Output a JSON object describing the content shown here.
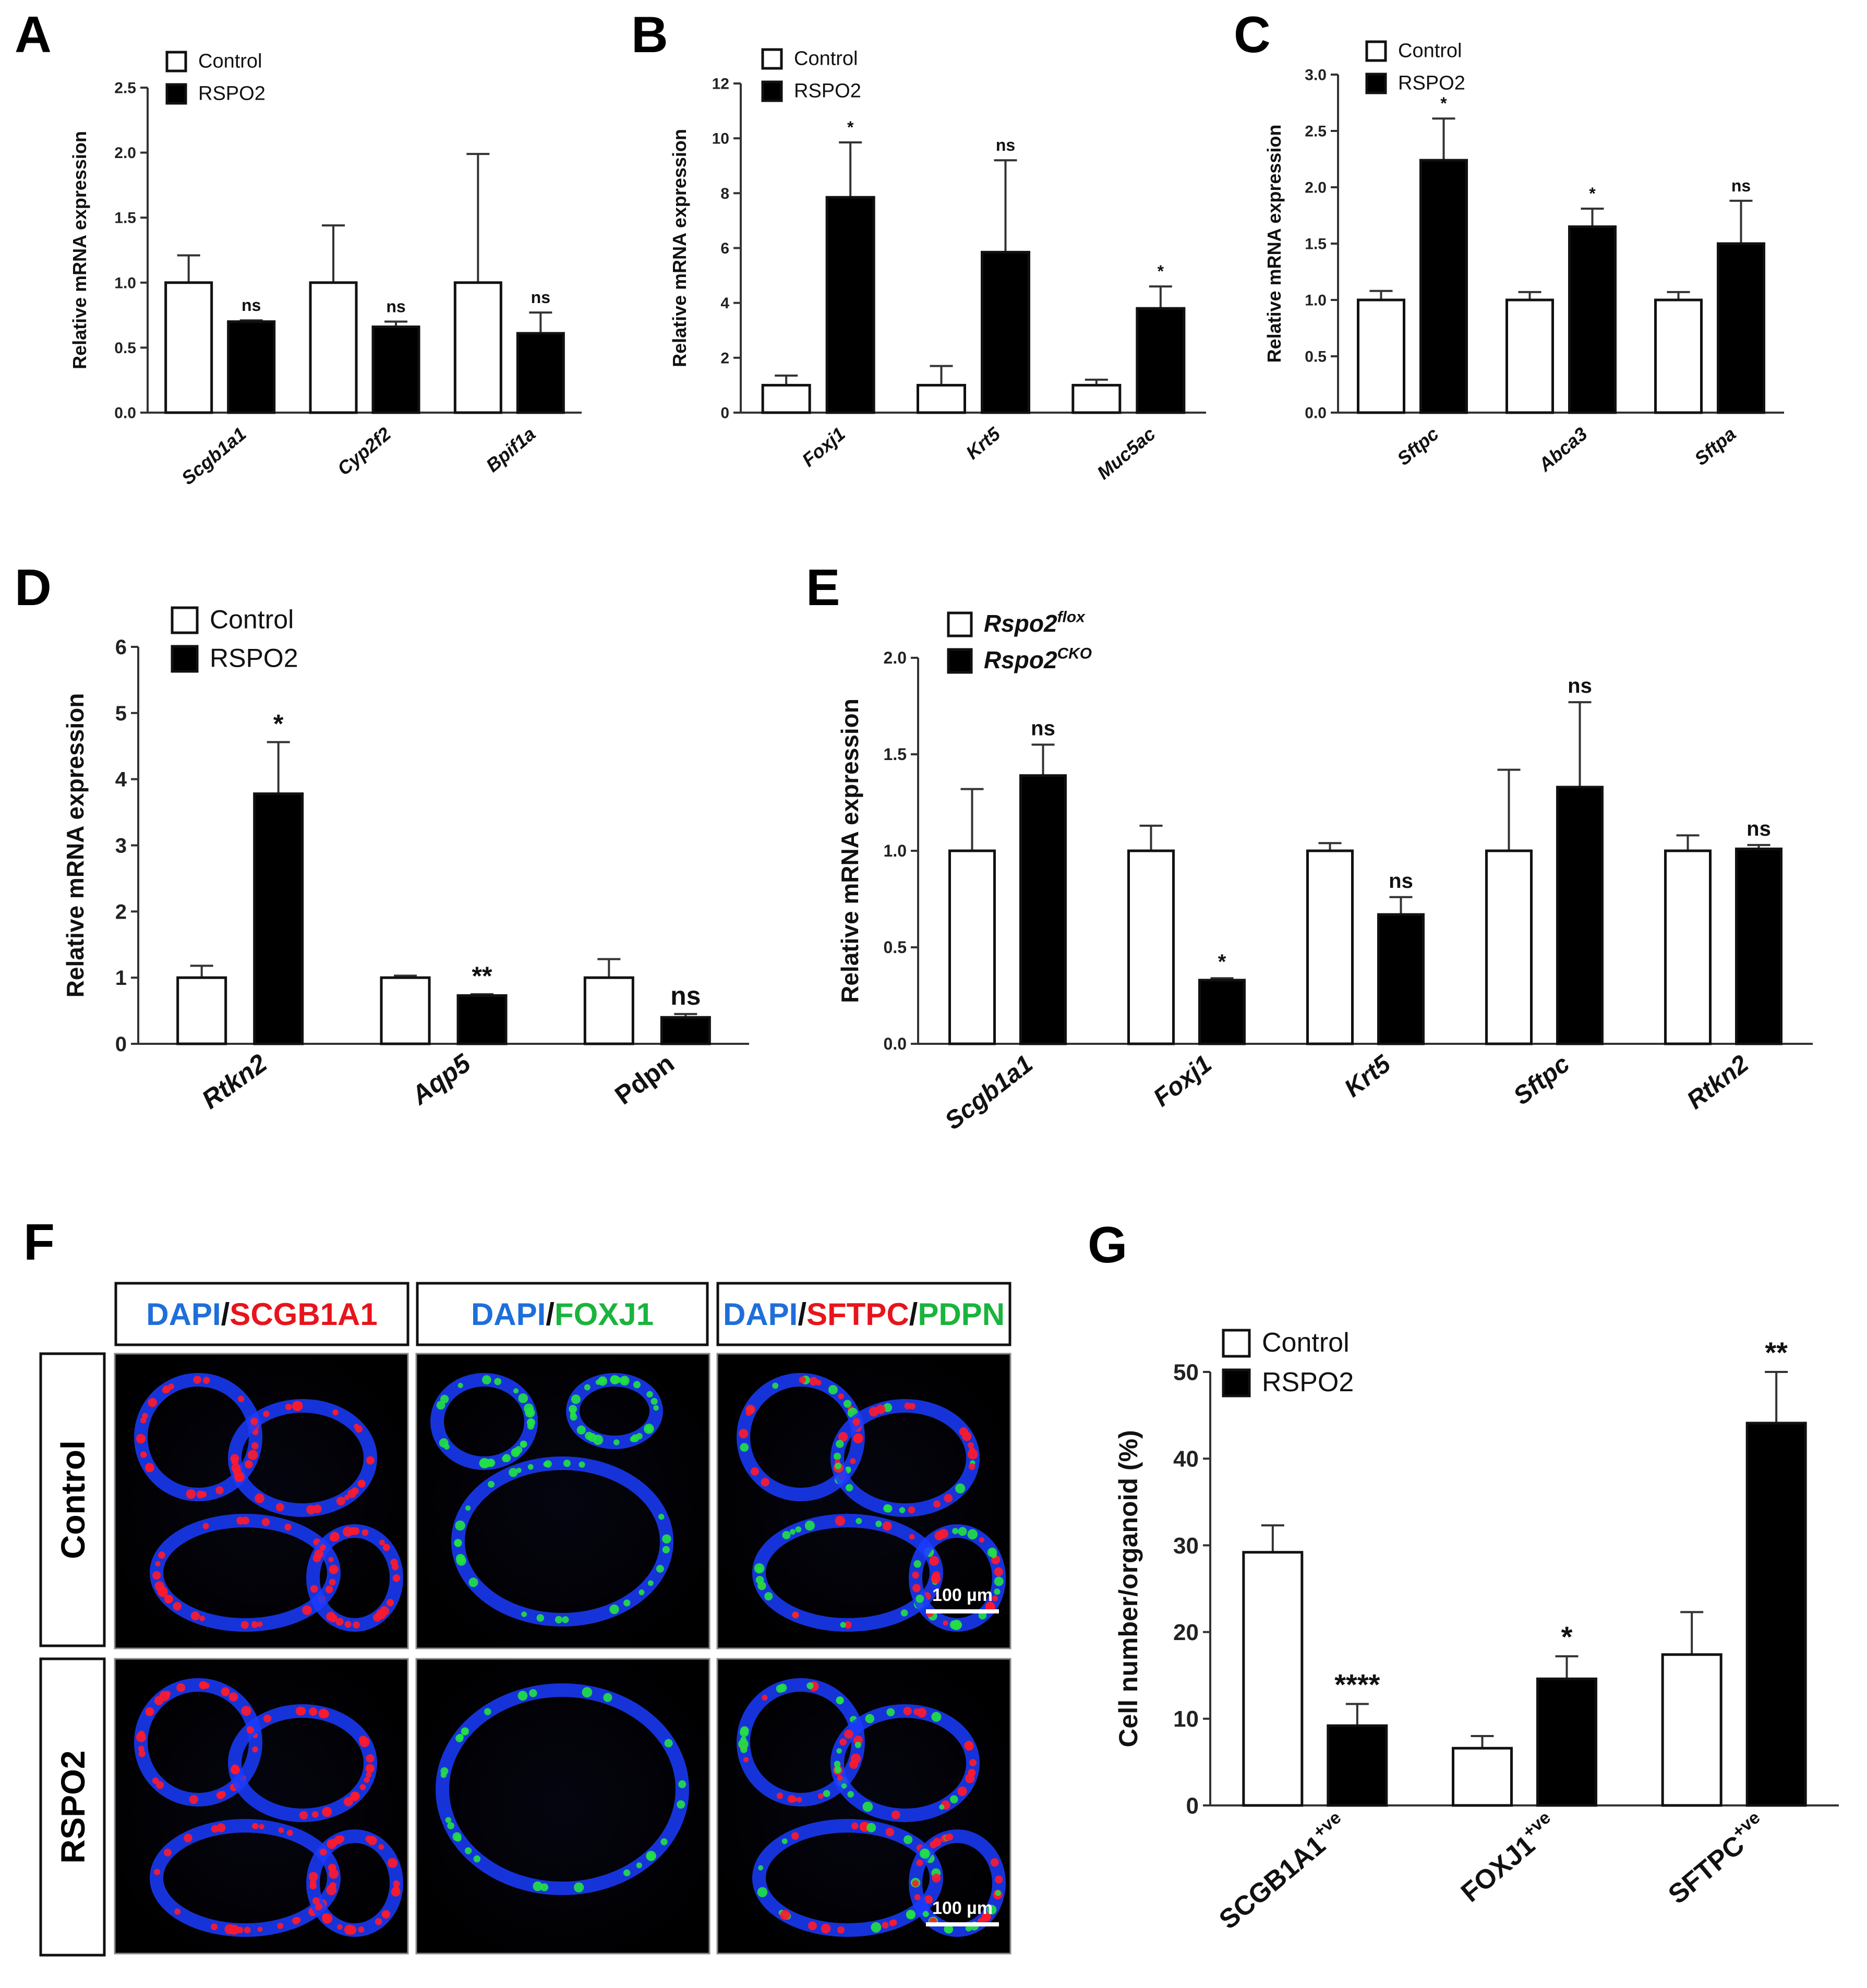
{
  "panels": {
    "A": "A",
    "B": "B",
    "C": "C",
    "D": "D",
    "E": "E",
    "F": "F",
    "G": "G"
  },
  "chart_data": [
    {
      "id": "A",
      "type": "bar",
      "ylabel": "Relative mRNA expression",
      "ylim": [
        0,
        2.5
      ],
      "yticks": [
        "0.0",
        "0.5",
        "1.0",
        "1.5",
        "2.0",
        "2.5"
      ],
      "tick_values": [
        0,
        0.5,
        1.0,
        1.5,
        2.0,
        2.5
      ],
      "categories": [
        "Scgb1a1",
        "Cyp2f2",
        "Bpif1a"
      ],
      "categories_italic": true,
      "series": [
        {
          "name": "Control",
          "values": [
            1.0,
            1.0,
            1.0
          ],
          "errors": [
            0.21,
            0.44,
            0.99
          ],
          "fill": "#ffffff"
        },
        {
          "name": "RSPO2",
          "values": [
            0.7,
            0.66,
            0.61
          ],
          "errors": [
            0.01,
            0.04,
            0.16
          ],
          "fill": "#000000"
        }
      ],
      "significance": [
        "ns",
        "ns",
        "ns"
      ],
      "legend_position": "top-left"
    },
    {
      "id": "B",
      "type": "bar",
      "ylabel": "Relative mRNA expression",
      "ylim": [
        0,
        12
      ],
      "yticks": [
        "0",
        "2",
        "4",
        "6",
        "8",
        "10",
        "12"
      ],
      "tick_values": [
        0,
        2,
        4,
        6,
        8,
        10,
        12
      ],
      "categories": [
        "Foxj1",
        "Krt5",
        "Muc5ac"
      ],
      "categories_italic": true,
      "series": [
        {
          "name": "Control",
          "values": [
            1.0,
            1.0,
            1.0
          ],
          "errors": [
            0.35,
            0.7,
            0.2
          ],
          "fill": "#ffffff"
        },
        {
          "name": "RSPO2",
          "values": [
            7.85,
            5.85,
            3.8
          ],
          "errors": [
            2.0,
            3.35,
            0.8
          ],
          "fill": "#000000"
        }
      ],
      "significance": [
        "*",
        "ns",
        "*"
      ],
      "legend_position": "top-left"
    },
    {
      "id": "C",
      "type": "bar",
      "ylabel": "Relative mRNA expression",
      "ylim": [
        0,
        3.0
      ],
      "yticks": [
        "0.0",
        "0.5",
        "1.0",
        "1.5",
        "2.0",
        "2.5",
        "3.0"
      ],
      "tick_values": [
        0,
        0.5,
        1.0,
        1.5,
        2.0,
        2.5,
        3.0
      ],
      "categories": [
        "Sftpc",
        "Abca3",
        "Sftpa"
      ],
      "categories_italic": true,
      "series": [
        {
          "name": "Control",
          "values": [
            1.0,
            1.0,
            1.0
          ],
          "errors": [
            0.08,
            0.07,
            0.07
          ],
          "fill": "#ffffff"
        },
        {
          "name": "RSPO2",
          "values": [
            2.24,
            1.65,
            1.5
          ],
          "errors": [
            0.37,
            0.16,
            0.38
          ],
          "fill": "#000000"
        }
      ],
      "significance": [
        "*",
        "*",
        "ns"
      ],
      "legend_position": "top-left"
    },
    {
      "id": "D",
      "type": "bar",
      "ylabel": "Relative mRNA expression",
      "ylim": [
        0,
        6
      ],
      "yticks": [
        "0",
        "1",
        "2",
        "3",
        "4",
        "5",
        "6"
      ],
      "tick_values": [
        0,
        1,
        2,
        3,
        4,
        5,
        6
      ],
      "categories": [
        "Rtkn2",
        "Aqp5",
        "Pdpn"
      ],
      "categories_italic": true,
      "category_italic_flags": [
        true,
        true,
        false
      ],
      "series": [
        {
          "name": "Control",
          "values": [
            1.0,
            1.0,
            1.0
          ],
          "errors": [
            0.18,
            0.03,
            0.28
          ],
          "fill": "#ffffff"
        },
        {
          "name": "RSPO2",
          "values": [
            3.78,
            0.73,
            0.4
          ],
          "errors": [
            0.78,
            0.02,
            0.05
          ],
          "fill": "#000000"
        }
      ],
      "significance": [
        "*",
        "**",
        "ns"
      ],
      "legend_position": "top-left"
    },
    {
      "id": "E",
      "type": "bar",
      "ylabel": "Relative mRNA expression",
      "ylim": [
        0,
        2.0
      ],
      "yticks": [
        "0.0",
        "0.5",
        "1.0",
        "1.5",
        "2.0"
      ],
      "tick_values": [
        0,
        0.5,
        1.0,
        1.5,
        2.0
      ],
      "categories": [
        "Scgb1a1",
        "Foxj1",
        "Krt5",
        "Sftpc",
        "Rtkn2"
      ],
      "categories_italic": true,
      "series": [
        {
          "name": "Rspo2",
          "superscript": "flox",
          "values": [
            1.0,
            1.0,
            1.0,
            1.0,
            1.0
          ],
          "errors": [
            0.32,
            0.13,
            0.04,
            0.42,
            0.08
          ],
          "fill": "#ffffff"
        },
        {
          "name": "Rspo2",
          "superscript": "CKO",
          "values": [
            1.39,
            0.33,
            0.67,
            1.33,
            1.01
          ],
          "errors": [
            0.16,
            0.01,
            0.09,
            0.44,
            0.02
          ],
          "fill": "#000000"
        }
      ],
      "significance": [
        "ns",
        "*",
        "ns",
        "ns",
        "ns"
      ],
      "legend_position": "top-left"
    },
    {
      "id": "G",
      "type": "bar",
      "ylabel": "Cell number/organoid (%)",
      "ylim": [
        0,
        50
      ],
      "yticks": [
        "0",
        "10",
        "20",
        "30",
        "40",
        "50"
      ],
      "tick_values": [
        0,
        10,
        20,
        30,
        40,
        50
      ],
      "categories": [
        "SCGB1A1",
        "FOXJ1",
        "SFTPC"
      ],
      "category_superscript": "+ve",
      "categories_italic": false,
      "series": [
        {
          "name": "Control",
          "values": [
            29.2,
            6.6,
            17.4
          ],
          "errors": [
            3.1,
            1.4,
            4.9
          ],
          "fill": "#ffffff"
        },
        {
          "name": "RSPO2",
          "values": [
            9.2,
            14.6,
            44.1
          ],
          "errors": [
            2.5,
            2.6,
            5.9
          ],
          "fill": "#000000"
        }
      ],
      "significance": [
        "****",
        "*",
        "**"
      ],
      "legend_position": "top-left"
    }
  ],
  "panel_f": {
    "columns": [
      [
        {
          "text": "DAPI",
          "color": "#1e6fd9"
        },
        {
          "text": "/",
          "color": "#111111"
        },
        {
          "text": "SCGB1A1",
          "color": "#e8141b"
        }
      ],
      [
        {
          "text": "DAPI",
          "color": "#1e6fd9"
        },
        {
          "text": "/",
          "color": "#111111"
        },
        {
          "text": "FOXJ1",
          "color": "#19b43c"
        }
      ],
      [
        {
          "text": "DAPI",
          "color": "#1e6fd9"
        },
        {
          "text": "/",
          "color": "#111111"
        },
        {
          "text": "SFTPC",
          "color": "#e8141b"
        },
        {
          "text": "/",
          "color": "#111111"
        },
        {
          "text": "PDPN",
          "color": "#19b43c"
        }
      ]
    ],
    "rows": [
      "Control",
      "RSPO2"
    ],
    "scale_bar_label": "100 µm"
  }
}
